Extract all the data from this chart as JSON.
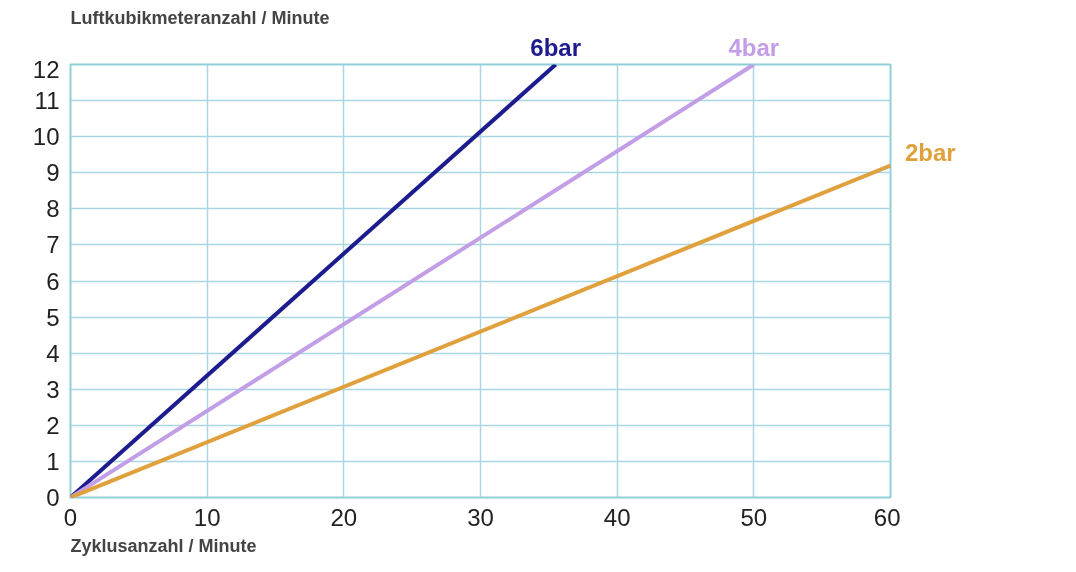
{
  "chart_data": {
    "type": "line",
    "ylabel": "Luftkubikmeteranzahl / Minute",
    "xlabel": "Zyklusanzahl / Minute",
    "xlim": [
      0,
      60
    ],
    "ylim": [
      0,
      12
    ],
    "xticks": [
      0,
      10,
      20,
      30,
      40,
      50,
      60
    ],
    "yticks": [
      0,
      1,
      2,
      3,
      4,
      5,
      6,
      7,
      8,
      9,
      10,
      11,
      12
    ],
    "grid": true,
    "series": [
      {
        "name": "6bar",
        "color": "#1c1c8e",
        "x": [
          0,
          35.5
        ],
        "values": [
          0,
          12
        ]
      },
      {
        "name": "4bar",
        "color": "#c29ee6",
        "x": [
          0,
          50
        ],
        "values": [
          0,
          12
        ]
      },
      {
        "name": "2bar",
        "color": "#e0a03c",
        "x": [
          0,
          60
        ],
        "values": [
          0,
          9.2
        ]
      }
    ]
  }
}
